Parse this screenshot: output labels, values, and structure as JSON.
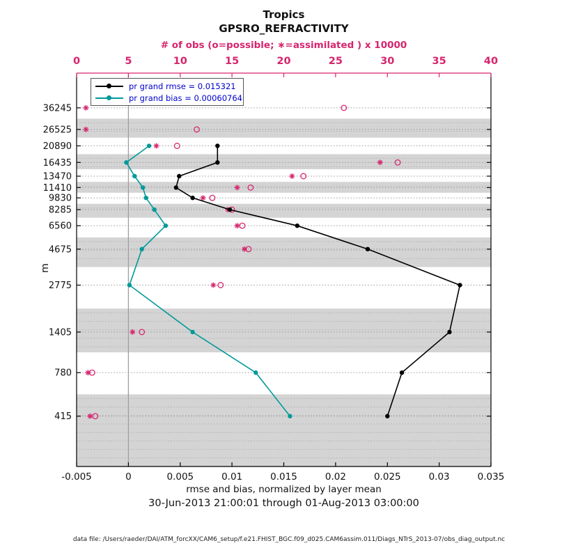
{
  "colors": {
    "obs": "#d6256e",
    "rmse": "#000000",
    "bias": "#009999",
    "legend_text": "#0000cc",
    "band": "#d4d4d4",
    "band_line": "#aeaeae",
    "grid": "#9a9a9a"
  },
  "header": {
    "title": "Tropics",
    "subtitle": "GPSRO_REFRACTIVITY"
  },
  "top_axis": {
    "label": "# of obs (o=possible; ∗=assimilated ) x 10000"
  },
  "bottom_axis": {
    "label": "rmse and bias, normalized by layer mean",
    "date_range": "30-Jun-2013 21:00:01 through 01-Aug-2013 03:00:00"
  },
  "y_axis": {
    "label": "m"
  },
  "legend": {
    "rmse_label": "pr grand rmse = 0.015321",
    "bias_label": "pr grand bias = 0.00060764"
  },
  "footer": "data file: /Users/raeder/DAI/ATM_forcXX/CAM6_setup/f.e21.FHIST_BGC.f09_d025.CAM6assim.011/Diags_NTrS_2013-07/obs_diag_output.nc",
  "chart_data": {
    "type": "line",
    "title": "Tropics — GPSRO_REFRACTIVITY vertical profile",
    "y_axis_scale": "log",
    "y_axis_range": [
      200,
      60000
    ],
    "bottom_axis_range": [
      -0.005,
      0.035
    ],
    "top_axis_range": [
      0,
      40
    ],
    "levels_m": [
      36245,
      26525,
      20890,
      16435,
      13470,
      11410,
      9830,
      8285,
      6560,
      4675,
      2775,
      1405,
      780,
      415
    ],
    "shaded_levels_m": [
      26525,
      16435,
      11410,
      8285,
      4675,
      1405,
      415
    ],
    "bottom_tick_values": [
      -0.005,
      0,
      0.005,
      0.01,
      0.015,
      0.02,
      0.025,
      0.03,
      0.035
    ],
    "bottom_tick_labels": [
      "-0.005",
      "0",
      "0.005",
      "0.01",
      "0.015",
      "0.02",
      "0.025",
      "0.03",
      "0.035"
    ],
    "top_tick_values": [
      0,
      5,
      10,
      15,
      20,
      25,
      30,
      35,
      40
    ],
    "top_tick_labels": [
      "0",
      "5",
      "10",
      "15",
      "20",
      "25",
      "30",
      "35",
      "40"
    ],
    "series": [
      {
        "name": "pr-grand-rmse",
        "legend": "pr grand rmse = 0.015321",
        "axis": "bottom",
        "marker": "filled-circle",
        "color_key": "rmse",
        "points": [
          [
            20890,
            0.0086
          ],
          [
            16435,
            0.0086
          ],
          [
            13470,
            0.0049
          ],
          [
            11410,
            0.0046
          ],
          [
            9830,
            0.0062
          ],
          [
            8285,
            0.0098
          ],
          [
            6560,
            0.0163
          ],
          [
            4675,
            0.0231
          ],
          [
            2775,
            0.032
          ],
          [
            1405,
            0.031
          ],
          [
            780,
            0.0264
          ],
          [
            415,
            0.025
          ]
        ]
      },
      {
        "name": "pr-grand-bias",
        "legend": "pr grand bias = 0.00060764",
        "axis": "bottom",
        "marker": "filled-circle",
        "color_key": "bias",
        "points": [
          [
            20890,
            0.002
          ],
          [
            16435,
            -0.0002
          ],
          [
            13470,
            0.0006
          ],
          [
            11410,
            0.0014
          ],
          [
            9830,
            0.0017
          ],
          [
            8285,
            0.0025
          ],
          [
            6560,
            0.0036
          ],
          [
            4675,
            0.0013
          ],
          [
            2775,
            0.0001
          ],
          [
            1405,
            0.0062
          ],
          [
            780,
            0.0123
          ],
          [
            415,
            0.0156
          ]
        ]
      }
    ],
    "obs_counts_x10000": [
      {
        "level_m": 36245,
        "possible": 25.8,
        "assimilated": 0.9
      },
      {
        "level_m": 26525,
        "possible": 11.6,
        "assimilated": 0.9
      },
      {
        "level_m": 20890,
        "possible": 9.7,
        "assimilated": 7.7
      },
      {
        "level_m": 16435,
        "possible": 31.0,
        "assimilated": 29.3
      },
      {
        "level_m": 13470,
        "possible": 21.9,
        "assimilated": 20.8
      },
      {
        "level_m": 11410,
        "possible": 16.8,
        "assimilated": 15.5
      },
      {
        "level_m": 9830,
        "possible": 13.1,
        "assimilated": 12.2
      },
      {
        "level_m": 8285,
        "possible": 15.0,
        "assimilated": 14.6
      },
      {
        "level_m": 6560,
        "possible": 16.0,
        "assimilated": 15.5
      },
      {
        "level_m": 4675,
        "possible": 16.6,
        "assimilated": 16.2
      },
      {
        "level_m": 2775,
        "possible": 13.9,
        "assimilated": 13.2
      },
      {
        "level_m": 1405,
        "possible": 6.3,
        "assimilated": 5.4
      },
      {
        "level_m": 780,
        "possible": 1.5,
        "assimilated": 1.1
      },
      {
        "level_m": 415,
        "possible": 1.8,
        "assimilated": 1.3
      }
    ]
  }
}
